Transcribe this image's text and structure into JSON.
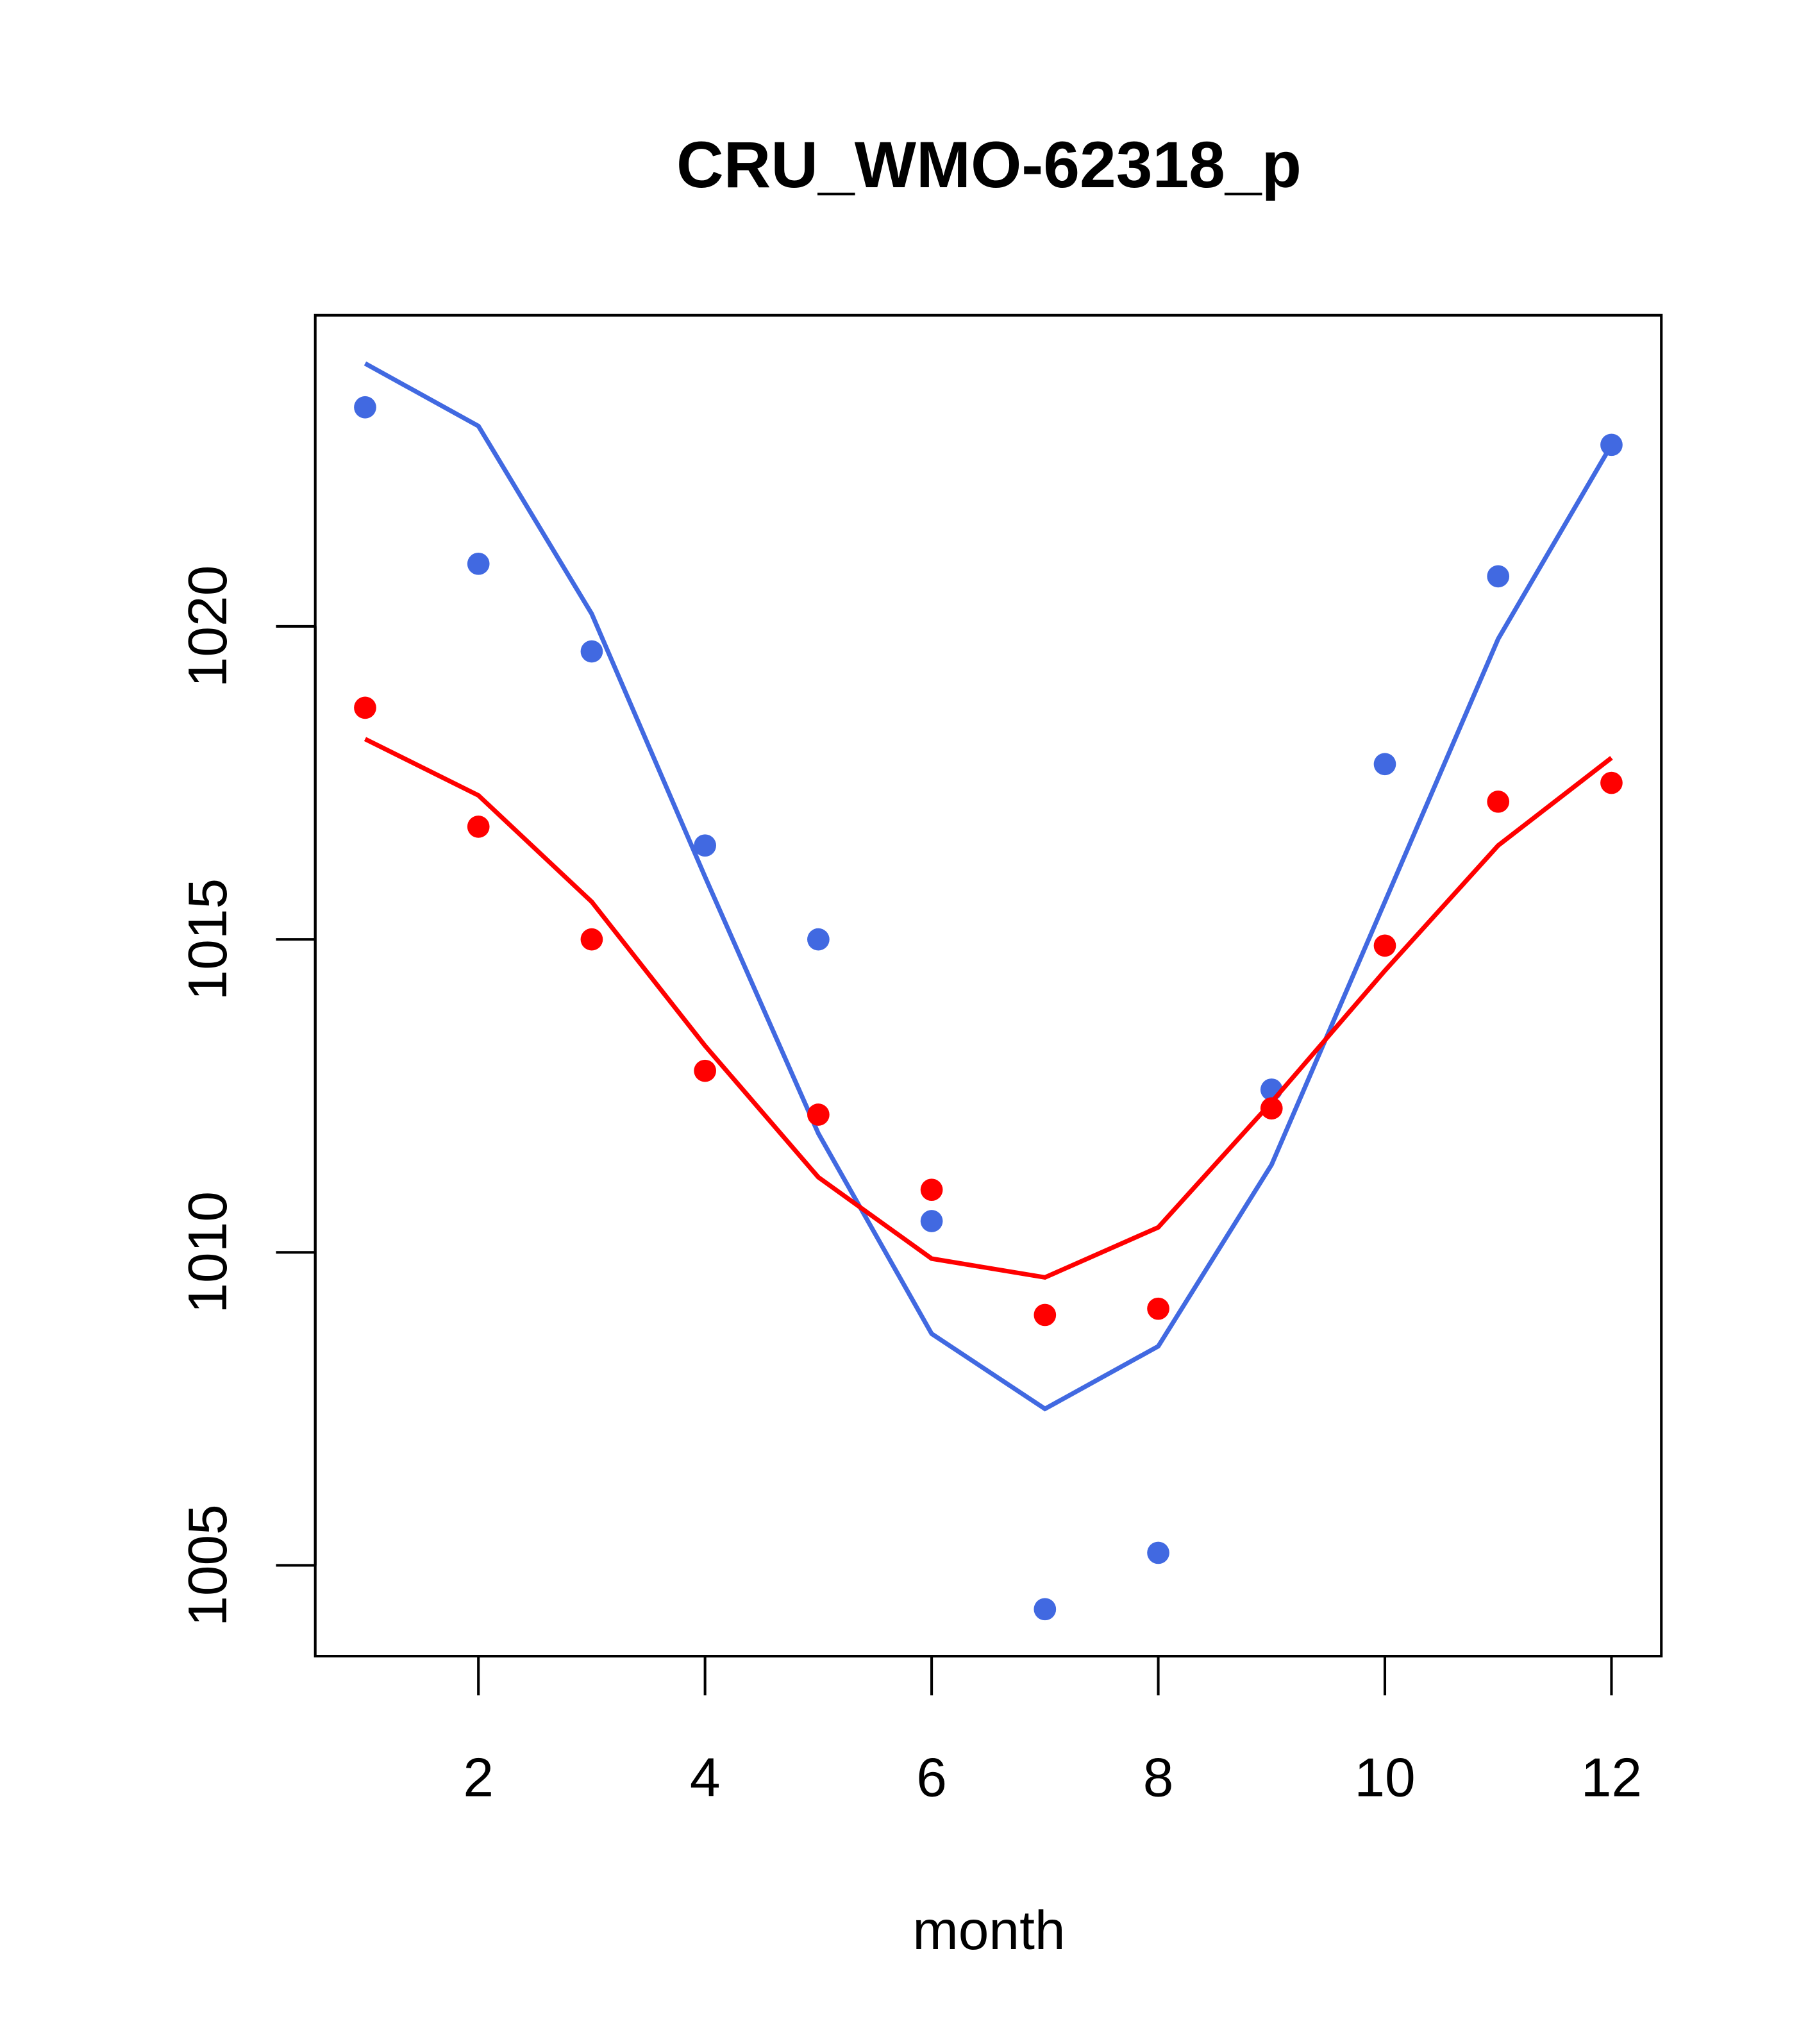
{
  "chart_data": {
    "type": "line",
    "title": "CRU_WMO-62318_p",
    "xlabel": "month",
    "ylabel": "",
    "xlim": [
      0.56,
      12.44
    ],
    "ylim": [
      1003.55,
      1024.97
    ],
    "x_ticks": [
      2,
      4,
      6,
      8,
      10,
      12
    ],
    "y_ticks": [
      1005,
      1010,
      1015,
      1020
    ],
    "grid": false,
    "x": [
      1,
      2,
      3,
      4,
      5,
      6,
      7,
      8,
      9,
      10,
      11,
      12
    ],
    "series": [
      {
        "name": "blue points",
        "kind": "points",
        "color": "#4169E1",
        "values": [
          1023.5,
          1021.0,
          1019.6,
          1016.5,
          1015.0,
          1010.5,
          1004.3,
          1005.2,
          1012.6,
          1017.8,
          1020.8,
          1022.9
        ]
      },
      {
        "name": "blue line",
        "kind": "line",
        "color": "#4169E1",
        "values": [
          1024.2,
          1023.2,
          1020.2,
          1016.0,
          1011.9,
          1008.7,
          1007.5,
          1008.5,
          1011.4,
          1015.6,
          1019.8,
          1022.9
        ]
      },
      {
        "name": "red points",
        "kind": "points",
        "color": "#FF0000",
        "values": [
          1018.7,
          1016.8,
          1015.0,
          1012.9,
          1012.2,
          1011.0,
          1009.0,
          1009.1,
          1012.3,
          1014.9,
          1017.2,
          1017.5
        ]
      },
      {
        "name": "red line",
        "kind": "line",
        "color": "#FF0000",
        "values": [
          1018.2,
          1017.3,
          1015.6,
          1013.3,
          1011.2,
          1009.9,
          1009.6,
          1010.4,
          1012.4,
          1014.5,
          1016.5,
          1017.9
        ]
      }
    ]
  }
}
